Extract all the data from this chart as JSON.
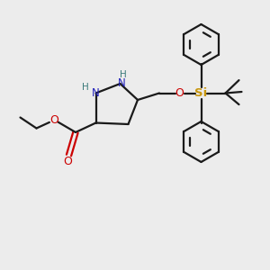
{
  "background_color": "#ececec",
  "bond_color": "#1a1a1a",
  "nitrogen_color": "#2222bb",
  "oxygen_color": "#cc0000",
  "silicon_color": "#c8960c",
  "nh_color": "#3a7a7a",
  "line_width": 1.6,
  "fig_size": [
    3.0,
    3.0
  ],
  "dpi": 100,
  "xlim": [
    0,
    10
  ],
  "ylim": [
    0,
    10
  ]
}
